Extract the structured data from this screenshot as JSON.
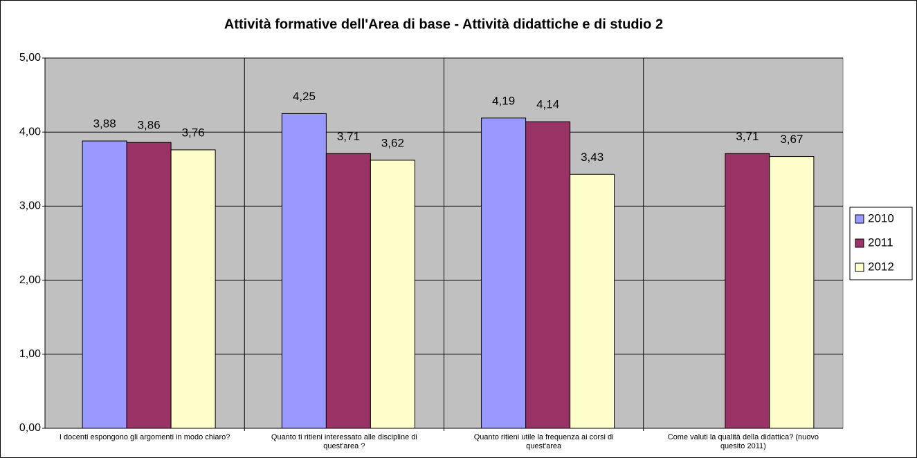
{
  "chart_data": {
    "type": "bar",
    "title": "Attività formative dell'Area di base - Attività didattiche e di studio 2",
    "categories": [
      "I docenti espongono gli argomenti in modo chiaro?",
      "Quanto ti ritieni interessato alle discipline di quest'area ?",
      "Quanto ritieni utile la frequenza ai corsi di quest'area",
      "Come valuti la qualità della didattica? (nuovo quesito 2011)"
    ],
    "series": [
      {
        "name": "2010",
        "color": "#9999ff",
        "values": [
          3.88,
          4.25,
          4.19,
          null
        ],
        "value_labels": [
          "3,88",
          "4,25",
          "4,19",
          null
        ]
      },
      {
        "name": "2011",
        "color": "#993366",
        "values": [
          3.86,
          3.71,
          4.14,
          3.71
        ],
        "value_labels": [
          "3,86",
          "3,71",
          "4,14",
          "3,71"
        ]
      },
      {
        "name": "2012",
        "color": "#ffffcc",
        "values": [
          3.76,
          3.62,
          3.43,
          3.67
        ],
        "value_labels": [
          "3,76",
          "3,62",
          "3,43",
          "3,67"
        ]
      }
    ],
    "ylim": [
      0,
      5
    ],
    "yticks": [
      {
        "value": 0,
        "label": "0,00"
      },
      {
        "value": 1,
        "label": "1,00"
      },
      {
        "value": 2,
        "label": "2,00"
      },
      {
        "value": 3,
        "label": "3,00"
      },
      {
        "value": 4,
        "label": "4,00"
      },
      {
        "value": 5,
        "label": "5,00"
      }
    ],
    "grid": true,
    "legend": "right"
  }
}
